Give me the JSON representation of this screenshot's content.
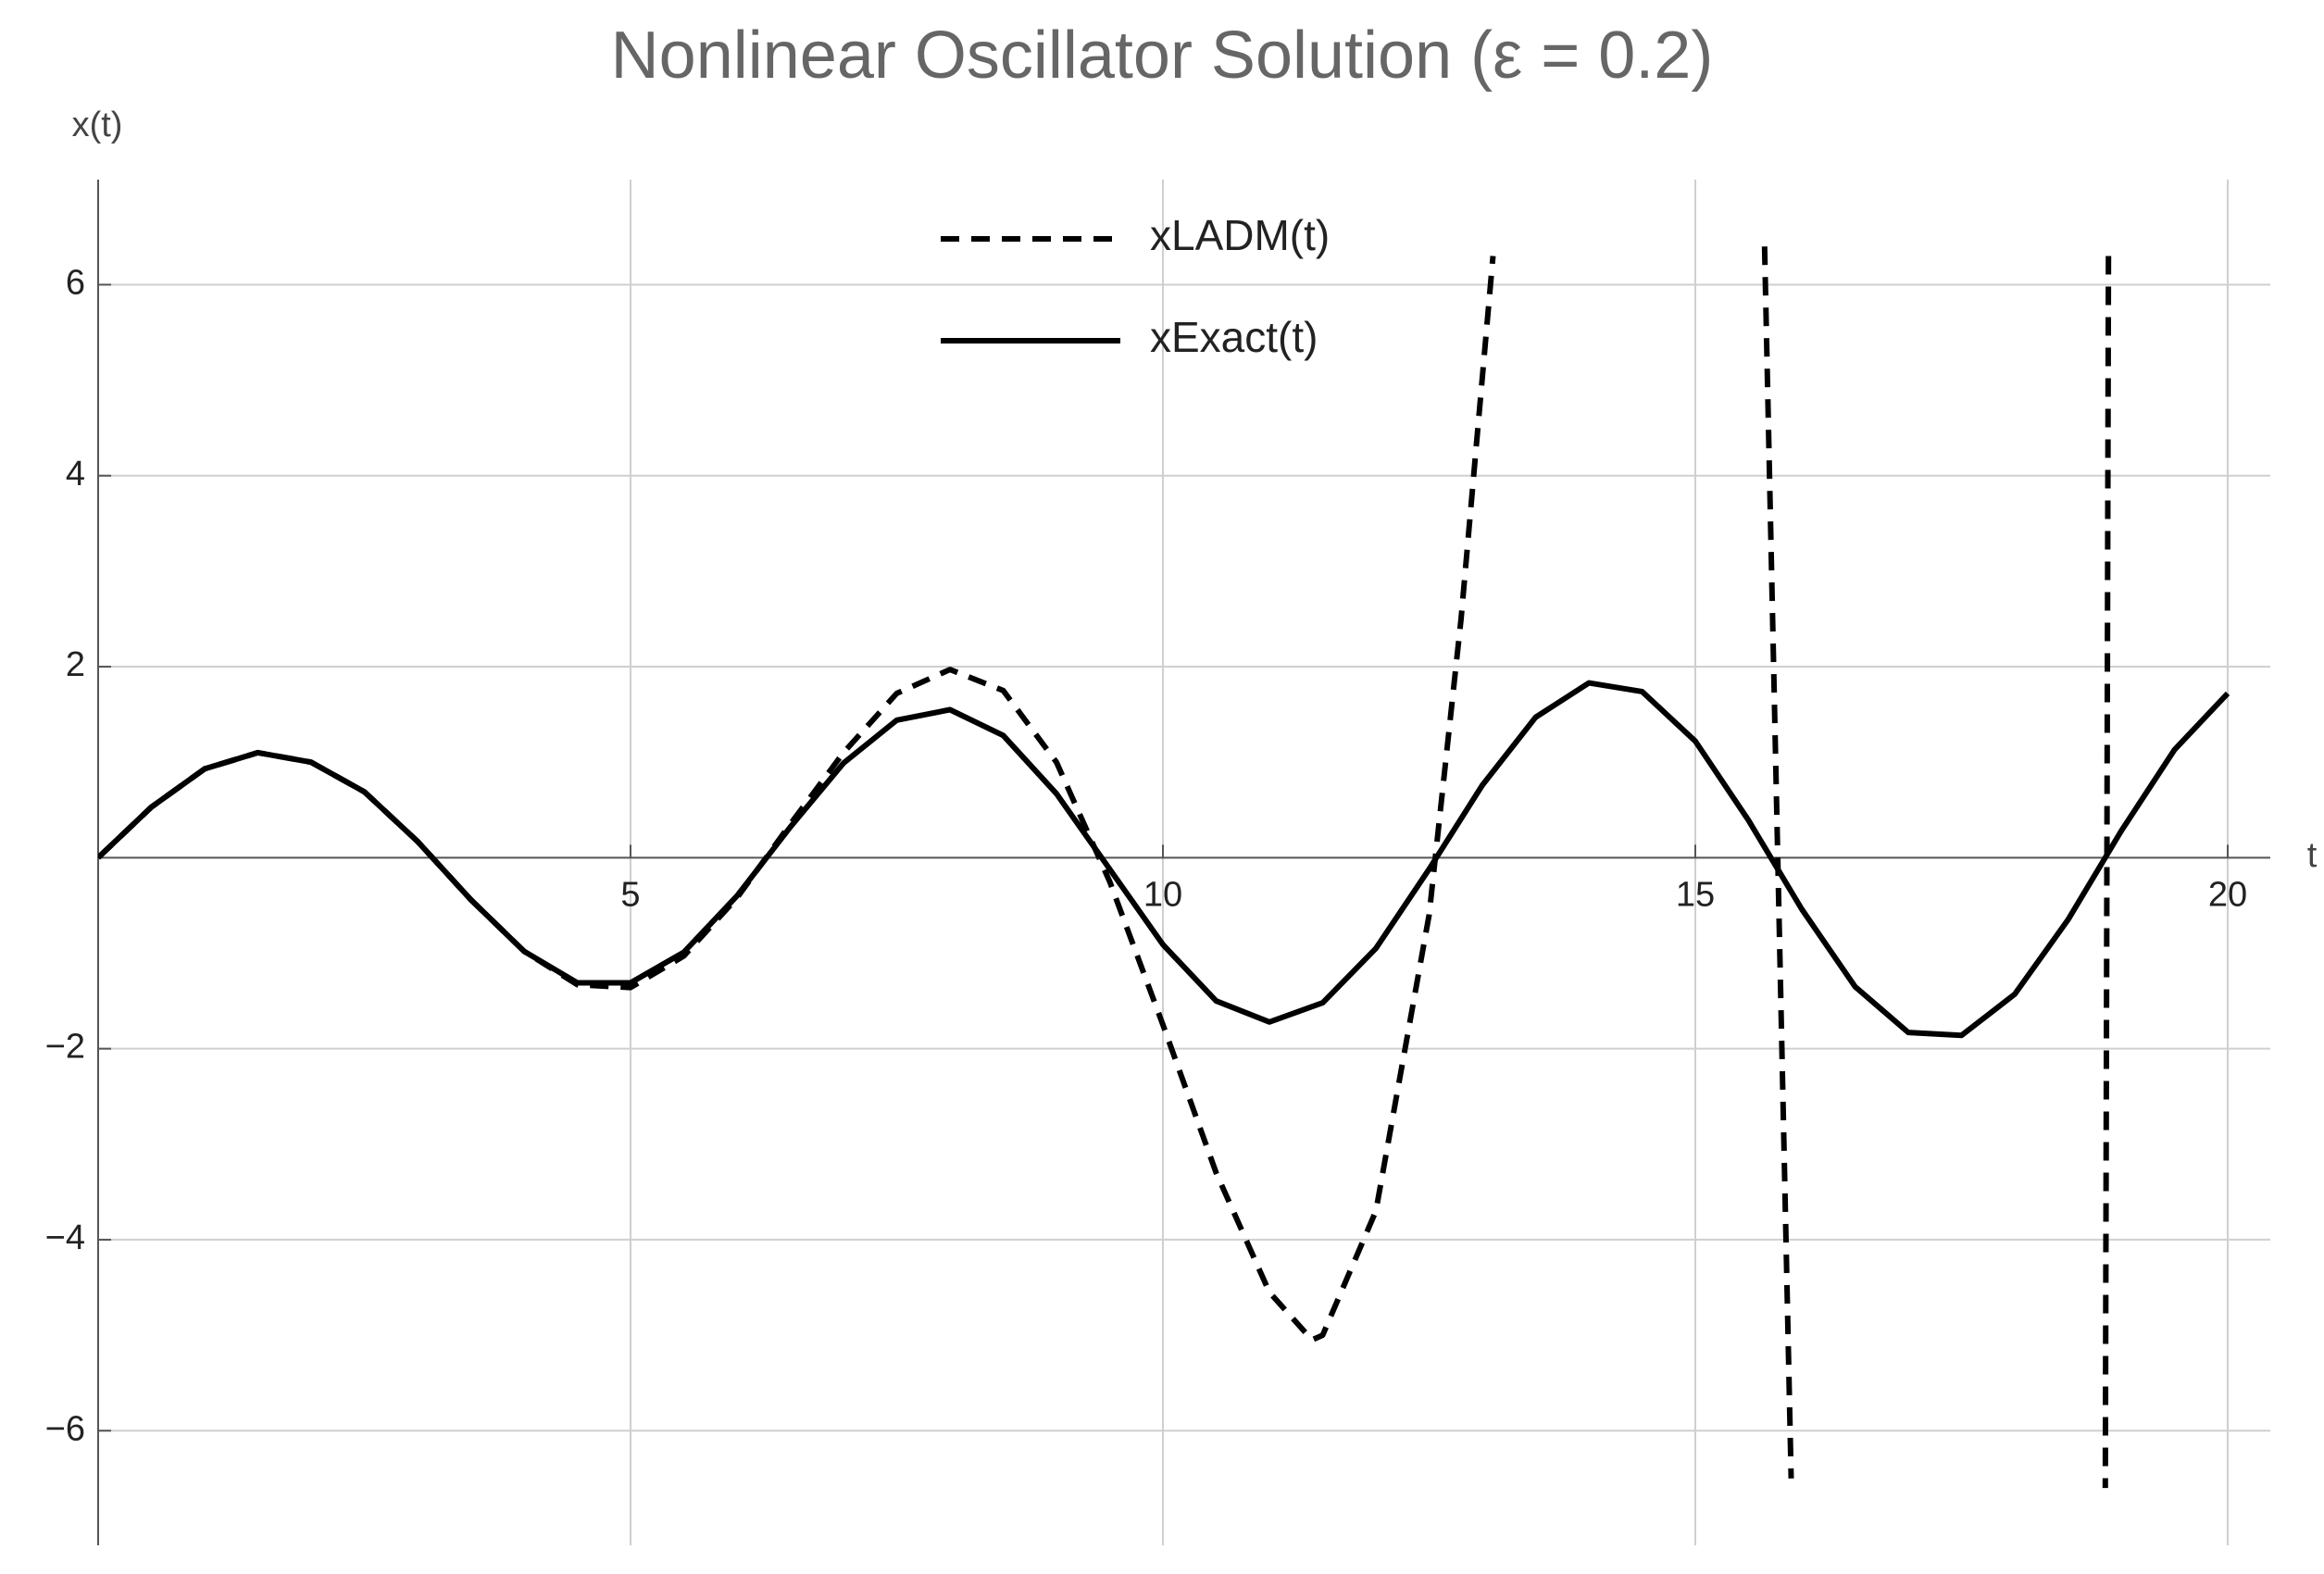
{
  "chart_data": {
    "type": "line",
    "title": "Nonlinear Oscillator Solution (ε = 0.2)",
    "x_label": "t",
    "y_label": "x(t)",
    "xlim": [
      0,
      20.4
    ],
    "ylim": [
      -7.2,
      7.1
    ],
    "xticks": [
      5,
      10,
      15,
      20
    ],
    "yticks": [
      {
        "value": -6,
        "label": "−6"
      },
      {
        "value": -4,
        "label": "−4"
      },
      {
        "value": -2,
        "label": "−2"
      },
      2,
      4,
      6
    ],
    "grid": true,
    "legend": "top",
    "series": [
      {
        "name": "xLADM(t)",
        "color": "#000000",
        "style": "dashed",
        "x": [
          0,
          0.5,
          1,
          1.5,
          2,
          2.5,
          3,
          3.5,
          4,
          4.5,
          5,
          5.5,
          6,
          6.5,
          7,
          7.5,
          8,
          8.5,
          9,
          9.5,
          10,
          10.5,
          11,
          11.4,
          11.5,
          12,
          12.5,
          12.8,
          13.1,
          null,
          15.65,
          15.9,
          null,
          18.88,
          18.85
        ],
        "values": [
          0,
          0.53,
          0.93,
          1.1,
          1.0,
          0.69,
          0.17,
          -0.44,
          -0.98,
          -1.33,
          -1.36,
          -1.03,
          -0.42,
          0.35,
          1.1,
          1.72,
          1.97,
          1.75,
          1.0,
          -0.25,
          -1.75,
          -3.3,
          -4.55,
          -5.05,
          -5.0,
          -3.7,
          -0.6,
          2.5,
          6.3,
          null,
          6.4,
          -6.5,
          null,
          6.3,
          -6.6
        ]
      },
      {
        "name": "xExact(t)",
        "color": "#000000",
        "style": "solid",
        "x": [
          0,
          0.5,
          1,
          1.5,
          2,
          2.5,
          3,
          3.5,
          4,
          4.5,
          5,
          5.5,
          6,
          6.5,
          7,
          7.5,
          8,
          8.5,
          9,
          9.5,
          10,
          10.5,
          11,
          11.5,
          12,
          12.5,
          13,
          13.5,
          14,
          14.5,
          15,
          15.5,
          16,
          16.5,
          17,
          17.5,
          18,
          18.5,
          19,
          19.5,
          20
        ],
        "values": [
          0,
          0.53,
          0.93,
          1.1,
          1.0,
          0.69,
          0.17,
          -0.44,
          -0.98,
          -1.31,
          -1.31,
          -0.99,
          -0.4,
          0.32,
          0.99,
          1.44,
          1.55,
          1.28,
          0.67,
          -0.12,
          -0.91,
          -1.5,
          -1.72,
          -1.52,
          -0.95,
          -0.12,
          0.76,
          1.47,
          1.83,
          1.74,
          1.22,
          0.39,
          -0.54,
          -1.35,
          -1.83,
          -1.86,
          -1.43,
          -0.65,
          0.28,
          1.13,
          1.72
        ]
      }
    ]
  }
}
